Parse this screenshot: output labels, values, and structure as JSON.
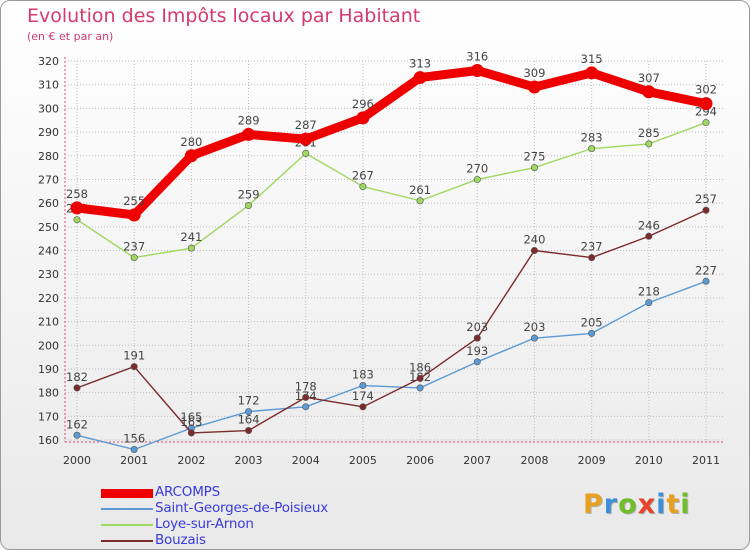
{
  "header": {
    "title": "Evolution des Impôts locaux par Habitant",
    "subtitle": "(en € et par an)"
  },
  "brand": {
    "letters": [
      "P",
      "r",
      "o",
      "x",
      "i",
      "t",
      "i"
    ],
    "colors": [
      "#e8a020",
      "#3d8fd8",
      "#6fbf2a",
      "#e8432a",
      "#3d8fd8",
      "#e8a020",
      "#6fbf2a"
    ]
  },
  "colors": {
    "accent": "#d43a6a",
    "grid": "#bdbdbd",
    "axis": "#e04a70",
    "legend_text": "#3a3adf"
  },
  "chart_data": {
    "type": "line",
    "title": "Evolution des Impôts locaux par Habitant",
    "subtitle": "(en € et par an)",
    "xlabel": "",
    "ylabel": "",
    "x": [
      "2000",
      "2001",
      "2002",
      "2003",
      "2004",
      "2005",
      "2006",
      "2007",
      "2008",
      "2009",
      "2010",
      "2011"
    ],
    "ylim": [
      160,
      320
    ],
    "yticks": [
      160,
      170,
      180,
      190,
      200,
      210,
      220,
      230,
      240,
      250,
      260,
      270,
      280,
      290,
      300,
      310,
      320
    ],
    "grid": true,
    "legend_position": "bottom-left",
    "series": [
      {
        "name": "ARCOMPS",
        "color": "#ee0000",
        "values": [
          258,
          255,
          280,
          289,
          287,
          296,
          313,
          316,
          309,
          315,
          307,
          302
        ]
      },
      {
        "name": "Saint-Georges-de-Poisieux",
        "color": "#5b9ad5",
        "values": [
          162,
          156,
          165,
          172,
          174,
          183,
          182,
          193,
          203,
          205,
          218,
          227
        ]
      },
      {
        "name": "Loye-sur-Arnon",
        "color": "#9ed860",
        "values": [
          253,
          237,
          241,
          259,
          281,
          267,
          261,
          270,
          275,
          283,
          285,
          294
        ]
      },
      {
        "name": "Bouzais",
        "color": "#7d2b2b",
        "values": [
          182,
          191,
          163,
          164,
          178,
          174,
          186,
          203,
          240,
          237,
          246,
          257
        ]
      }
    ]
  }
}
